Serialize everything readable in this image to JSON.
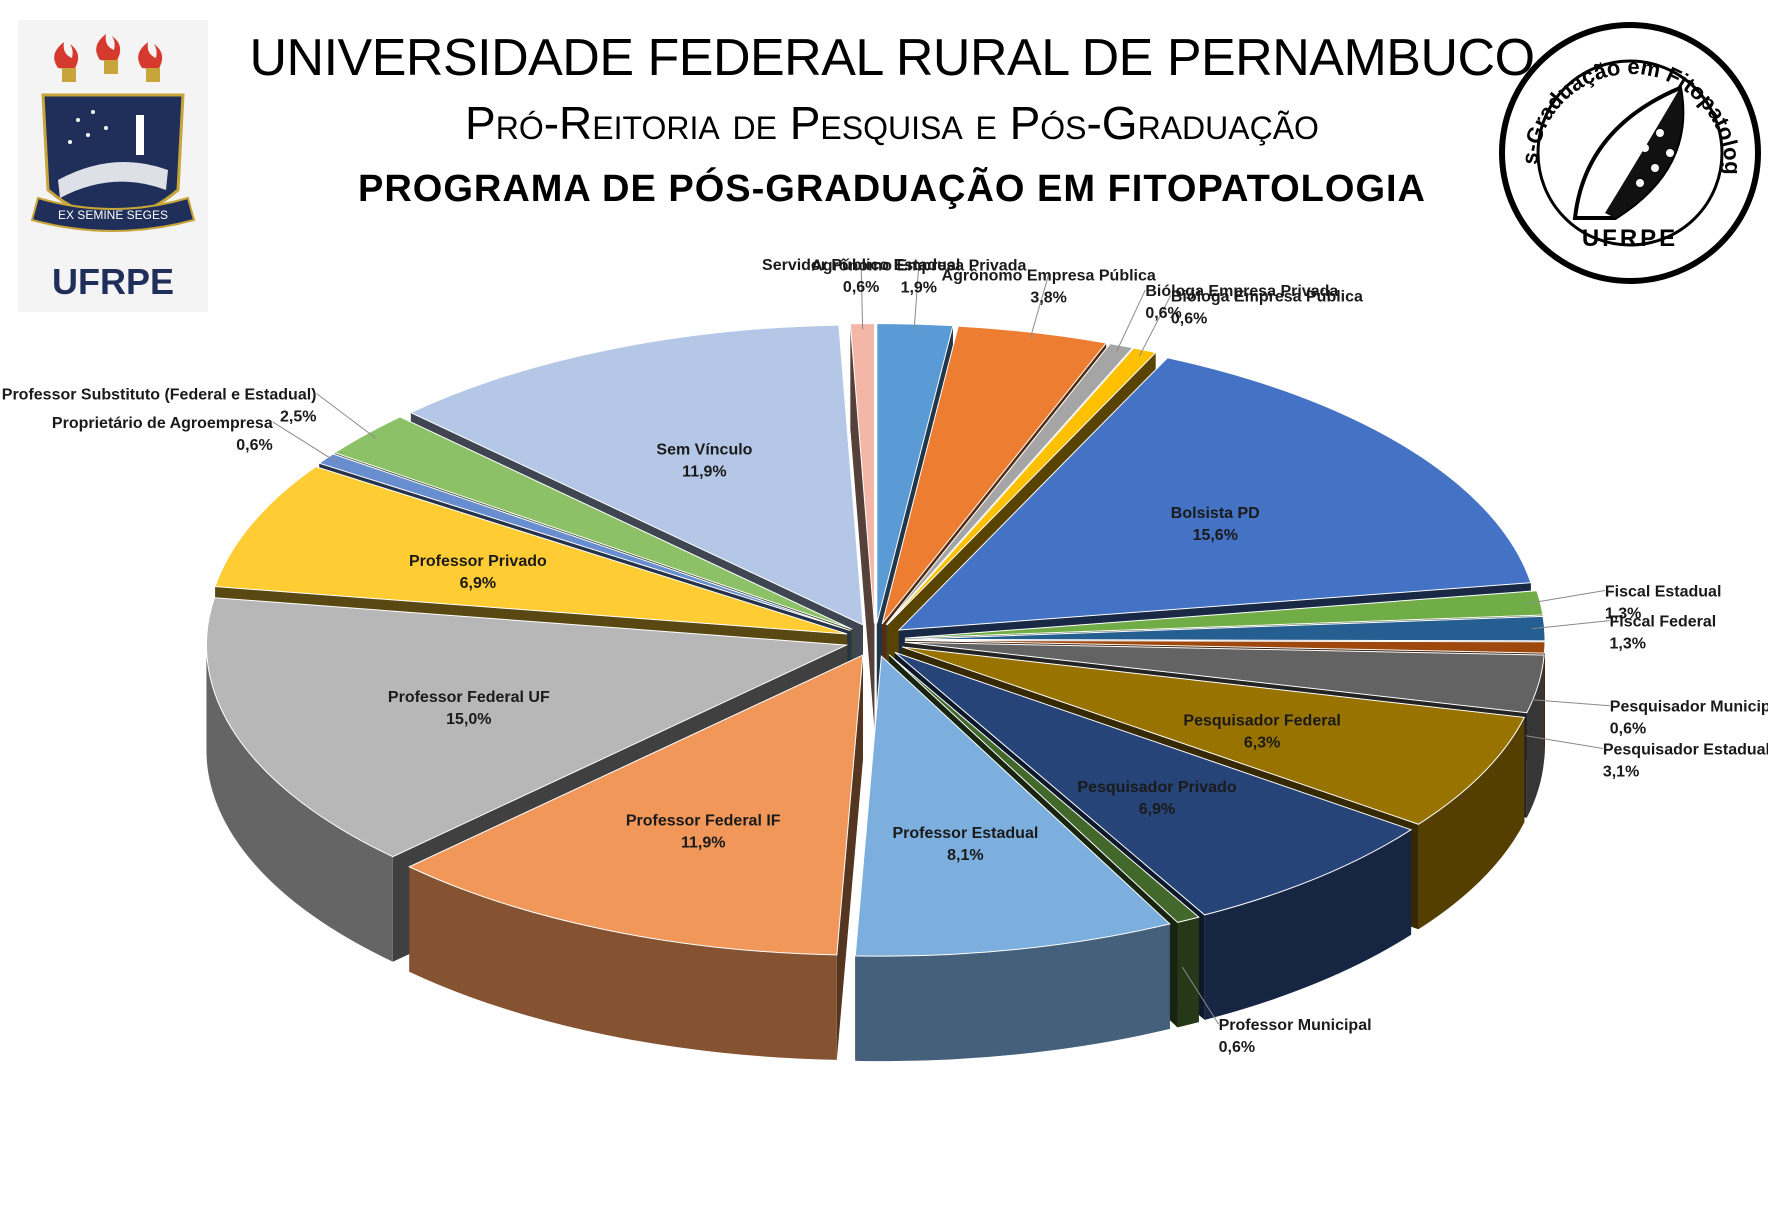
{
  "header": {
    "line1": "UNIVERSIDADE FEDERAL RURAL DE PERNAMBUCO",
    "line2": "Pró-Reitoria de Pesquisa e Pós-Graduação",
    "line3": "PROGRAMA DE PÓS-GRADUAÇÃO EM FITOPATOLOGIA"
  },
  "logo_left": {
    "motto": "EX SEMINE SEGES",
    "name": "UFRPE"
  },
  "logo_right": {
    "ring_text": "Pós-Graduação em Fitopatologia",
    "name": "UFRPE"
  },
  "chart_data": {
    "type": "pie",
    "title": "",
    "slices": [
      {
        "name": "Agrônomo Empresa Privada",
        "value": 1.9,
        "label": "1,9%",
        "color": "#5b9bd5"
      },
      {
        "name": "Agrônomo Empresa Pública",
        "value": 3.8,
        "label": "3,8%",
        "color": "#ed7d31"
      },
      {
        "name": "Bióloga Empresa Privada",
        "value": 0.6,
        "label": "0,6%",
        "color": "#a5a5a5"
      },
      {
        "name": "Bióloga Empresa Pública",
        "value": 0.6,
        "label": "0,6%",
        "color": "#ffc000"
      },
      {
        "name": "Bolsista PD",
        "value": 15.6,
        "label": "15,6%",
        "color": "#4472c4"
      },
      {
        "name": "Fiscal Estadual",
        "value": 1.3,
        "label": "1,3%",
        "color": "#70ad47"
      },
      {
        "name": "Fiscal Federal",
        "value": 1.3,
        "label": "1,3%",
        "color": "#255e91"
      },
      {
        "name": "Pesquisador Municipal",
        "value": 0.6,
        "label": "0,6%",
        "color": "#9e480e"
      },
      {
        "name": "Pesquisador Estadual",
        "value": 3.1,
        "label": "3,1%",
        "color": "#636363"
      },
      {
        "name": "Pesquisador Federal",
        "value": 6.3,
        "label": "6,3%",
        "color": "#997300"
      },
      {
        "name": "Pesquisador Privado",
        "value": 6.9,
        "label": "6,9%",
        "color": "#264478"
      },
      {
        "name": "Professor Municipal",
        "value": 0.6,
        "label": "0,6%",
        "color": "#43682b"
      },
      {
        "name": "Professor Estadual",
        "value": 8.1,
        "label": "8,1%",
        "color": "#7cafdd"
      },
      {
        "name": "Professor Federal IF",
        "value": 11.9,
        "label": "11,9%",
        "color": "#f1975a"
      },
      {
        "name": "Professor Federal UF",
        "value": 15.0,
        "label": "15,0%",
        "color": "#b7b7b7"
      },
      {
        "name": "Professor Privado",
        "value": 6.9,
        "label": "6,9%",
        "color": "#ffcd33"
      },
      {
        "name": "Proprietário de Agroempresa",
        "value": 0.6,
        "label": "0,6%",
        "color": "#698ed0"
      },
      {
        "name": "Professor Substituto (Federal e Estadual)",
        "value": 2.5,
        "label": "2,5%",
        "color": "#8cc168"
      },
      {
        "name": "Sem Vínculo",
        "value": 11.9,
        "label": "11,9%",
        "color": "#b4c7e7"
      },
      {
        "name": "Servidor Público Estadual",
        "value": 0.6,
        "label": "0,6%",
        "color": "#f4b6a6"
      }
    ]
  }
}
